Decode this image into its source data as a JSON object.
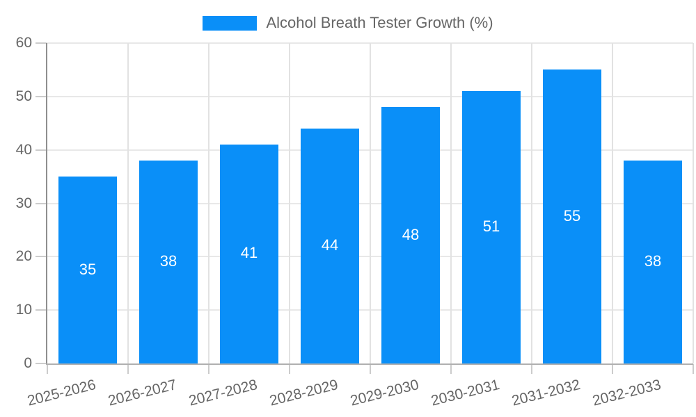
{
  "chart_data": {
    "type": "bar",
    "title": "Alcohol Breath Tester Growth (%)",
    "categories": [
      "2025-2026",
      "2026-2027",
      "2027-2028",
      "2028-2029",
      "2029-2030",
      "2030-2031",
      "2031-2032",
      "2032-2033"
    ],
    "series": [
      {
        "name": "Alcohol Breath Tester Growth (%)",
        "values": [
          35,
          38,
          41,
          44,
          48,
          51,
          55,
          38
        ]
      }
    ],
    "xlabel": "",
    "ylabel": "",
    "ylim": [
      0,
      60
    ],
    "yticks": [
      0,
      10,
      20,
      30,
      40,
      50,
      60
    ],
    "grid": true,
    "legend_position": "top-center",
    "bar_labels_shown": true,
    "colors": {
      "bar": "#0A8FF8",
      "bar_label_text": "#FFFFFF",
      "axis_text": "#666666",
      "legend_text": "#666666",
      "gridline_h": "#E8E8E8",
      "gridline_v": "#E2E2E2",
      "axis_spine_left": "#8F8F8F",
      "axis_spine_bottom": "#B0B0B0",
      "tick_mark": "#CCCCCC",
      "background": "#FFFFFF"
    }
  }
}
